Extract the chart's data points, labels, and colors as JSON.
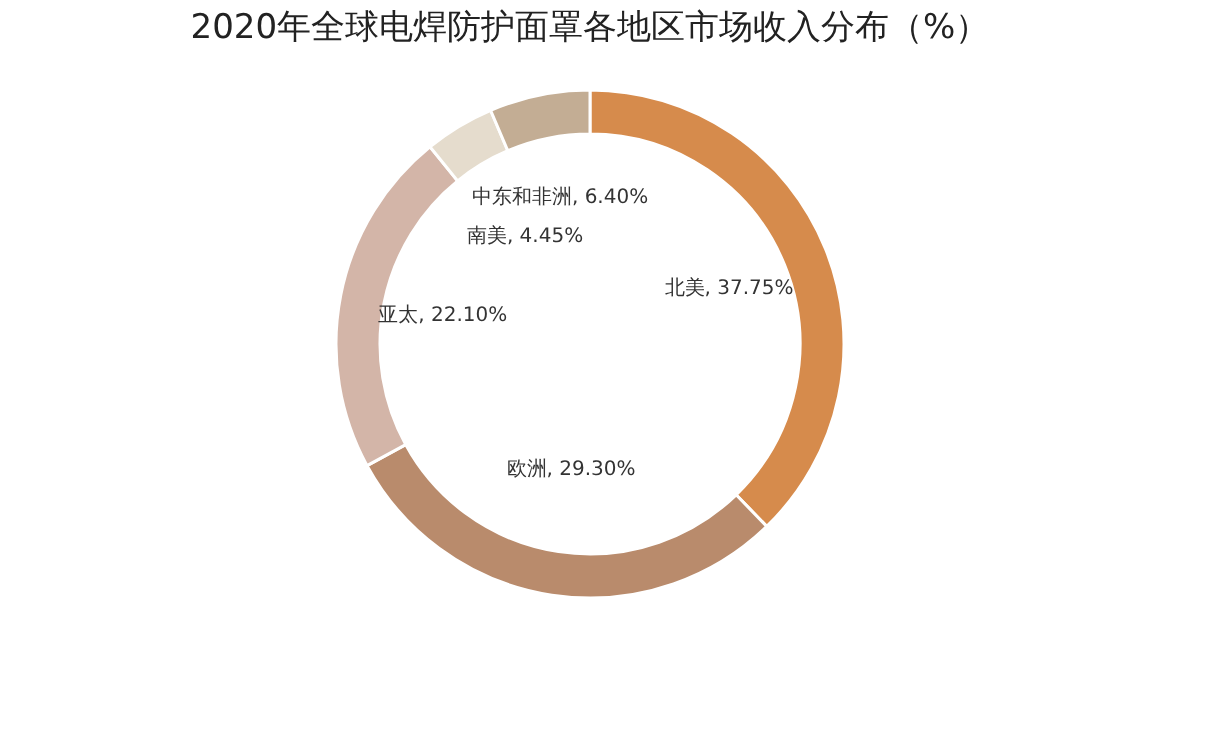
{
  "chart_data": {
    "type": "donut",
    "title": "2020年全球电焊防护面罩各地区市场收入分布（%）",
    "categories": [
      "北美",
      "欧洲",
      "亚太",
      "南美",
      "中东和非洲"
    ],
    "values": [
      37.75,
      29.3,
      22.1,
      4.45,
      6.4
    ],
    "value_labels": [
      "37.75%",
      "29.30%",
      "22.10%",
      "4.45%",
      "6.40%"
    ],
    "colors": [
      "#d68b4c",
      "#b98b6c",
      "#d3b5a8",
      "#e5dccd",
      "#c3ad94"
    ],
    "legend": false
  }
}
